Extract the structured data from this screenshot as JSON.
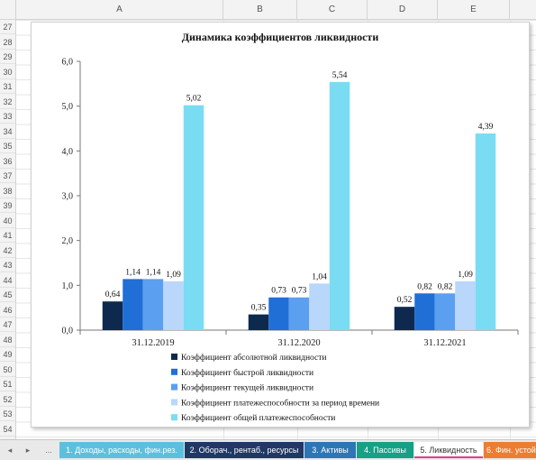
{
  "columns": [
    "A",
    "B",
    "C",
    "D",
    "E"
  ],
  "rows": [
    "27",
    "28",
    "29",
    "30",
    "31",
    "32",
    "33",
    "34",
    "35",
    "36",
    "37",
    "38",
    "39",
    "40",
    "41",
    "42",
    "43",
    "44",
    "45",
    "46",
    "47",
    "48",
    "49",
    "50",
    "51",
    "52",
    "53",
    "54",
    "55"
  ],
  "nav": {
    "prev": "◂",
    "next": "▸",
    "more": "..."
  },
  "tabs": [
    {
      "label": "1. Доходы, расходы, фин.рез.",
      "color": "#5bc0de",
      "active": false
    },
    {
      "label": "2. Оборач., рентаб., ресурсы",
      "color": "#1f3864",
      "active": false
    },
    {
      "label": "3. Активы",
      "color": "#2e75b6",
      "active": false
    },
    {
      "label": "4. Пассивы",
      "color": "#16a085",
      "active": false
    },
    {
      "label": "5. Ликвидность",
      "color": "#e23f8a",
      "active": true
    },
    {
      "label": "6. Фин. устойч",
      "color": "#ed7d31",
      "active": false
    }
  ],
  "chart_data": {
    "type": "bar",
    "title": "Динамика коэффициентов ликвидности",
    "categories": [
      "31.12.2019",
      "31.12.2020",
      "31.12.2021"
    ],
    "ylim": [
      0,
      6
    ],
    "yticks": [
      "0,0",
      "1,0",
      "2,0",
      "3,0",
      "4,0",
      "5,0",
      "6,0"
    ],
    "grid": false,
    "legend_position": "bottom",
    "series": [
      {
        "name": "Коэффициент абсолютной ликвидности",
        "color": "#0d2a4e",
        "values": [
          0.64,
          0.35,
          0.52
        ],
        "labels": [
          "0,64",
          "0,35",
          "0,52"
        ]
      },
      {
        "name": "Коэффициент быстрой ликвидности",
        "color": "#1f6fd6",
        "values": [
          1.14,
          0.73,
          0.82
        ],
        "labels": [
          "1,14",
          "0,73",
          "0,82"
        ]
      },
      {
        "name": "Коэффициент текущей ликвидности",
        "color": "#5b9ff0",
        "values": [
          1.14,
          0.73,
          0.82
        ],
        "labels": [
          "1,14",
          "0,73",
          "0,82"
        ]
      },
      {
        "name": "Коэффициент платежеспособности за период времени",
        "color": "#b9d6fb",
        "values": [
          1.09,
          1.04,
          1.09
        ],
        "labels": [
          "1,09",
          "1,04",
          "1,09"
        ]
      },
      {
        "name": "Коэффициент общей платежеспособности",
        "color": "#7adcf2",
        "values": [
          5.02,
          5.54,
          4.39
        ],
        "labels": [
          "5,02",
          "5,54",
          "4,39"
        ]
      }
    ]
  }
}
